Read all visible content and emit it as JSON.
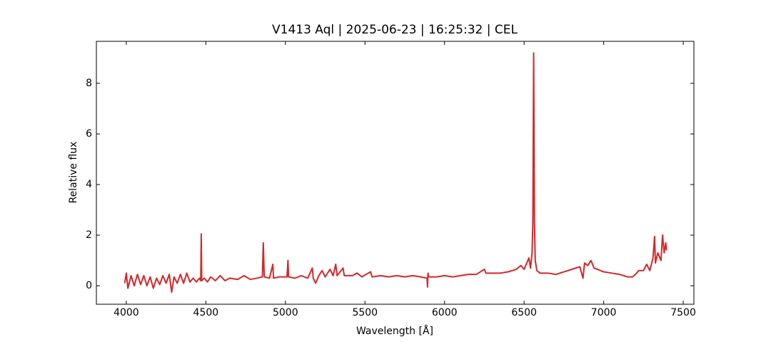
{
  "chart_data": {
    "type": "line",
    "title": "V1413 Aql | 2025-06-23 | 16:25:32 | CEL",
    "x_label": "Wavelength [Å]",
    "y_label": "Relative flux",
    "xlim": [
      3812,
      7567
    ],
    "ylim": [
      -0.73,
      9.66
    ],
    "xticks": [
      4000,
      4500,
      5000,
      5500,
      6000,
      6500,
      7000,
      7500
    ],
    "yticks": [
      0,
      2,
      4,
      6,
      8
    ],
    "tick_direction": "in",
    "series": [
      {
        "color": "#d62728",
        "x": [
          3990,
          4000,
          4010,
          4030,
          4050,
          4070,
          4090,
          4110,
          4130,
          4150,
          4170,
          4190,
          4210,
          4230,
          4250,
          4270,
          4285,
          4300,
          4320,
          4340,
          4360,
          4380,
          4400,
          4420,
          4440,
          4460,
          4468,
          4471,
          4474,
          4490,
          4510,
          4530,
          4560,
          4590,
          4620,
          4650,
          4700,
          4740,
          4780,
          4820,
          4855,
          4861,
          4867,
          4900,
          4921,
          4925,
          4960,
          5010,
          5016,
          5020,
          5060,
          5100,
          5140,
          5169,
          5175,
          5190,
          5210,
          5230,
          5250,
          5280,
          5300,
          5316,
          5325,
          5362,
          5370,
          5420,
          5450,
          5480,
          5535,
          5545,
          5600,
          5650,
          5700,
          5750,
          5800,
          5850,
          5890,
          5893,
          5896,
          5900,
          5950,
          6000,
          6050,
          6100,
          6150,
          6200,
          6250,
          6260,
          6300,
          6350,
          6400,
          6450,
          6480,
          6500,
          6530,
          6540,
          6550,
          6555,
          6560,
          6565,
          6570,
          6580,
          6600,
          6650,
          6700,
          6750,
          6800,
          6850,
          6870,
          6880,
          6900,
          6920,
          6940,
          6960,
          7000,
          7050,
          7100,
          7150,
          7180,
          7200,
          7220,
          7250,
          7270,
          7290,
          7310,
          7320,
          7325,
          7340,
          7360,
          7370,
          7380,
          7390,
          7395
        ],
        "values": [
          0.1,
          0.5,
          -0.1,
          0.4,
          0.0,
          0.45,
          0.05,
          0.4,
          0.0,
          0.35,
          -0.1,
          0.3,
          0.05,
          0.4,
          0.1,
          0.45,
          -0.25,
          0.35,
          0.1,
          0.45,
          0.1,
          0.5,
          0.15,
          0.3,
          0.15,
          0.3,
          0.2,
          2.05,
          0.2,
          0.3,
          0.15,
          0.35,
          0.2,
          0.4,
          0.2,
          0.3,
          0.25,
          0.4,
          0.25,
          0.3,
          0.35,
          1.7,
          0.35,
          0.3,
          0.85,
          0.3,
          0.35,
          0.35,
          1.0,
          0.35,
          0.3,
          0.4,
          0.3,
          0.7,
          0.3,
          0.1,
          0.4,
          0.6,
          0.35,
          0.65,
          0.4,
          0.85,
          0.4,
          0.7,
          0.4,
          0.4,
          0.5,
          0.35,
          0.55,
          0.35,
          0.4,
          0.35,
          0.4,
          0.35,
          0.4,
          0.35,
          0.3,
          -0.05,
          0.5,
          0.35,
          0.35,
          0.4,
          0.35,
          0.4,
          0.45,
          0.45,
          0.65,
          0.5,
          0.5,
          0.5,
          0.55,
          0.65,
          0.8,
          0.65,
          1.1,
          0.7,
          1.3,
          2.5,
          9.2,
          2.5,
          1.0,
          0.6,
          0.5,
          0.5,
          0.45,
          0.55,
          0.65,
          0.75,
          0.3,
          0.9,
          0.8,
          1.0,
          0.7,
          0.65,
          0.55,
          0.5,
          0.45,
          0.35,
          0.35,
          0.45,
          0.6,
          0.6,
          0.85,
          0.6,
          1.1,
          1.95,
          0.9,
          1.3,
          1.0,
          2.0,
          1.3,
          1.7,
          1.4
        ]
      }
    ]
  }
}
